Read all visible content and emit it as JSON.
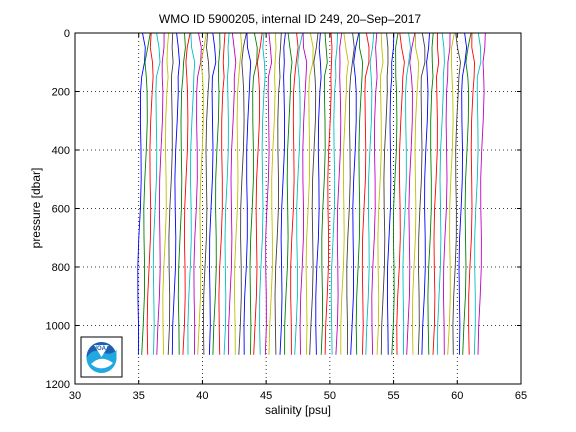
{
  "chart_data": {
    "type": "line",
    "title": "WMO ID 5900205, internal ID 249, 20–Sep–2017",
    "xlabel": "salinity [psu]",
    "ylabel": "pressure [dbar]",
    "xlim": [
      30,
      65
    ],
    "ylim": [
      1200,
      0
    ],
    "y_reversed": true,
    "grid": true,
    "grid_style": "dotted",
    "x_ticks": [
      30,
      35,
      40,
      45,
      50,
      55,
      60,
      65
    ],
    "y_ticks": [
      0,
      200,
      400,
      600,
      800,
      1000,
      1200
    ],
    "profile_count": 68,
    "profile_x_offset_step": 0.4,
    "profile_surface_range": [
      35.3,
      62.7
    ],
    "profile_bottom_range": [
      34.9,
      61.6
    ],
    "pressure_levels": [
      0,
      50,
      100,
      150,
      200,
      300,
      400,
      500,
      600,
      700,
      800,
      900,
      1000,
      1100
    ],
    "series_colors": [
      "#0000ff",
      "#008000",
      "#ff0000",
      "#00bfbf",
      "#bf00bf",
      "#bfbf00",
      "#404040"
    ]
  },
  "logo": {
    "text": "NOAA"
  }
}
